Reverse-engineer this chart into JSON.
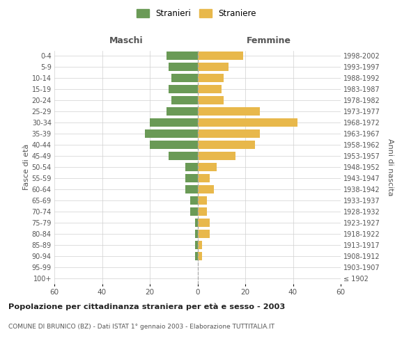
{
  "age_groups": [
    "100+",
    "95-99",
    "90-94",
    "85-89",
    "80-84",
    "75-79",
    "70-74",
    "65-69",
    "60-64",
    "55-59",
    "50-54",
    "45-49",
    "40-44",
    "35-39",
    "30-34",
    "25-29",
    "20-24",
    "15-19",
    "10-14",
    "5-9",
    "0-4"
  ],
  "birth_years": [
    "≤ 1902",
    "1903-1907",
    "1908-1912",
    "1913-1917",
    "1918-1922",
    "1923-1927",
    "1928-1932",
    "1933-1937",
    "1938-1942",
    "1943-1947",
    "1948-1952",
    "1953-1957",
    "1958-1962",
    "1963-1967",
    "1968-1972",
    "1973-1977",
    "1978-1982",
    "1983-1987",
    "1988-1992",
    "1993-1997",
    "1998-2002"
  ],
  "maschi": [
    0,
    0,
    1,
    1,
    1,
    1,
    3,
    3,
    5,
    5,
    5,
    12,
    20,
    22,
    20,
    13,
    11,
    12,
    11,
    12,
    13
  ],
  "femmine": [
    0,
    0,
    2,
    2,
    5,
    5,
    4,
    4,
    7,
    5,
    8,
    16,
    24,
    26,
    42,
    26,
    11,
    10,
    11,
    13,
    19
  ],
  "color_maschi": "#6a9a56",
  "color_femmine": "#e8b84b",
  "title": "Popolazione per cittadinanza straniera per età e sesso - 2003",
  "subtitle": "COMUNE DI BRUNICO (BZ) - Dati ISTAT 1° gennaio 2003 - Elaborazione TUTTITALIA.IT",
  "header_maschi": "Maschi",
  "header_femmine": "Femmine",
  "ylabel_left": "Fasce di età",
  "ylabel_right": "Anni di nascita",
  "legend_maschi": "Stranieri",
  "legend_femmine": "Straniere",
  "xlim": 60,
  "bg_color": "#ffffff",
  "grid_color": "#d0d0d0",
  "bar_height": 0.75
}
